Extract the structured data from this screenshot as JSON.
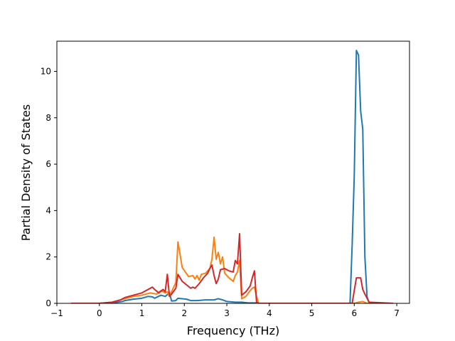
{
  "chart_data": {
    "type": "line",
    "xlabel": "Frequency (THz)",
    "ylabel": "Partial Density of States",
    "xlim": [
      -1,
      7.3
    ],
    "ylim": [
      0,
      11.3
    ],
    "xticks": [
      -1,
      0,
      1,
      2,
      3,
      4,
      5,
      6,
      7
    ],
    "yticks": [
      0,
      2,
      4,
      6,
      8,
      10
    ],
    "grid": false,
    "legend": "none",
    "series": [
      {
        "color": "#1f77b4",
        "x": [
          -0.65,
          0.0,
          0.3,
          0.55,
          0.6,
          0.8,
          1.0,
          1.15,
          1.25,
          1.3,
          1.45,
          1.55,
          1.65,
          1.7,
          1.8,
          1.85,
          1.95,
          2.05,
          2.15,
          2.2,
          2.3,
          2.5,
          2.65,
          2.7,
          2.8,
          2.9,
          3.0,
          3.2,
          3.35,
          3.5,
          3.7,
          3.75,
          5.5,
          5.9,
          5.95,
          6.0,
          6.05,
          6.1,
          6.15,
          6.2,
          6.25,
          6.3,
          6.35,
          6.9
        ],
        "y": [
          0,
          0,
          0.02,
          0.08,
          0.12,
          0.18,
          0.22,
          0.3,
          0.28,
          0.22,
          0.35,
          0.3,
          0.45,
          0.1,
          0.12,
          0.22,
          0.2,
          0.18,
          0.12,
          0.12,
          0.12,
          0.15,
          0.15,
          0.15,
          0.2,
          0.15,
          0.08,
          0.05,
          0.05,
          0.02,
          0.02,
          0,
          0,
          0,
          2.5,
          5.5,
          10.9,
          10.7,
          8.3,
          7.5,
          2.0,
          0.3,
          0,
          0
        ]
      },
      {
        "color": "#ff7f0e",
        "x": [
          -0.65,
          0.0,
          0.3,
          0.5,
          0.6,
          0.8,
          1.0,
          1.2,
          1.35,
          1.45,
          1.55,
          1.6,
          1.65,
          1.7,
          1.75,
          1.8,
          1.85,
          1.95,
          2.1,
          2.2,
          2.25,
          2.3,
          2.35,
          2.4,
          2.5,
          2.6,
          2.65,
          2.7,
          2.75,
          2.8,
          2.85,
          2.9,
          2.95,
          3.05,
          3.15,
          3.2,
          3.25,
          3.3,
          3.35,
          3.45,
          3.55,
          3.6,
          3.65,
          3.7,
          3.75,
          5.5,
          6.0,
          6.1,
          6.2,
          6.3,
          6.9
        ],
        "y": [
          0,
          0,
          0.05,
          0.15,
          0.2,
          0.3,
          0.35,
          0.45,
          0.4,
          0.55,
          0.45,
          0.5,
          0.3,
          0.5,
          0.7,
          0.9,
          2.65,
          1.55,
          1.15,
          1.2,
          1.05,
          1.2,
          1.0,
          1.25,
          1.3,
          1.5,
          1.9,
          2.85,
          1.9,
          2.2,
          1.7,
          2.0,
          1.3,
          1.1,
          0.95,
          1.2,
          1.35,
          1.85,
          0.2,
          0.3,
          0.55,
          0.65,
          0.7,
          0.3,
          0,
          0,
          0,
          0.05,
          0.08,
          0,
          0
        ]
      },
      {
        "color": "#d62728",
        "x": [
          -0.65,
          0.0,
          0.3,
          0.5,
          0.6,
          0.8,
          1.0,
          1.15,
          1.25,
          1.3,
          1.4,
          1.5,
          1.55,
          1.6,
          1.65,
          1.7,
          1.8,
          1.85,
          1.95,
          2.05,
          2.15,
          2.2,
          2.25,
          2.35,
          2.45,
          2.55,
          2.6,
          2.65,
          2.7,
          2.75,
          2.8,
          2.85,
          2.95,
          3.05,
          3.15,
          3.2,
          3.25,
          3.3,
          3.35,
          3.45,
          3.55,
          3.6,
          3.65,
          3.7,
          3.75,
          5.5,
          5.95,
          6.05,
          6.15,
          6.2,
          6.25,
          6.35,
          6.9
        ],
        "y": [
          0,
          0,
          0.05,
          0.15,
          0.25,
          0.35,
          0.45,
          0.6,
          0.7,
          0.6,
          0.45,
          0.6,
          0.5,
          1.25,
          0.3,
          0.4,
          0.65,
          1.25,
          0.95,
          0.8,
          0.65,
          0.7,
          0.65,
          0.85,
          1.1,
          1.3,
          1.5,
          1.65,
          1.2,
          0.85,
          1.05,
          1.45,
          1.5,
          1.4,
          1.35,
          1.85,
          1.7,
          3.0,
          0.35,
          0.5,
          0.75,
          1.1,
          1.4,
          0.05,
          0,
          0,
          0,
          1.1,
          1.1,
          0.6,
          0.4,
          0.05,
          0
        ]
      }
    ]
  }
}
